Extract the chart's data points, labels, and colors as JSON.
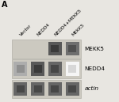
{
  "panel_label": "A",
  "col_labels": [
    "Vector",
    "NEDD4",
    "NEDD4+MEKK5",
    "MEKK5"
  ],
  "row_labels": [
    "MEKK5",
    "NEDD4",
    "actin"
  ],
  "fig_bg": "#e8e6e1",
  "strip_bg": "#d4d0c8",
  "bands": {
    "MEKK5": [
      {
        "col": 0,
        "intensity": 0.03
      },
      {
        "col": 1,
        "intensity": 0.03
      },
      {
        "col": 2,
        "intensity": 0.88
      },
      {
        "col": 3,
        "intensity": 0.78
      }
    ],
    "NEDD4": [
      {
        "col": 0,
        "intensity": 0.5
      },
      {
        "col": 1,
        "intensity": 0.88
      },
      {
        "col": 2,
        "intensity": 0.82
      },
      {
        "col": 3,
        "intensity": 0.18
      }
    ],
    "actin": [
      {
        "col": 0,
        "intensity": 0.82
      },
      {
        "col": 1,
        "intensity": 0.82
      },
      {
        "col": 2,
        "intensity": 0.82
      },
      {
        "col": 3,
        "intensity": 0.82
      }
    ]
  },
  "n_cols": 4,
  "n_rows": 3,
  "label_fontsize": 5.2,
  "panel_fontsize": 7,
  "tick_fontsize": 4.2
}
